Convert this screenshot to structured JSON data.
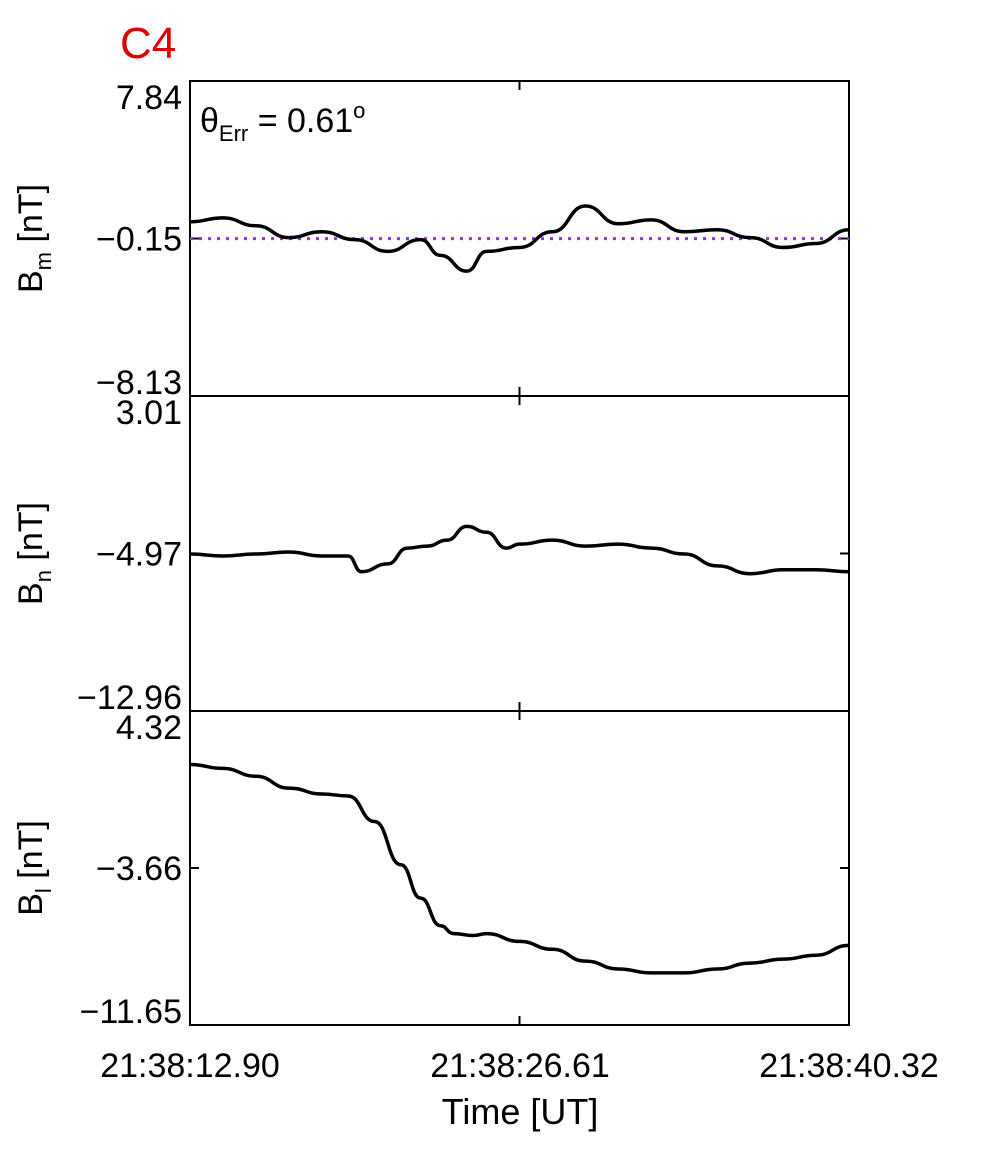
{
  "chart_data": [
    {
      "type": "line",
      "title": "C4",
      "title_color": "#e00000",
      "ylabel": "B",
      "ylabel_sub": "m",
      "ylabel_unit": " [nT]",
      "yticks": [
        "7.84",
        "-0.15",
        "-8.13"
      ],
      "ylim": [
        -8.13,
        7.84
      ],
      "annotation": {
        "theta": "θ",
        "sub": "Err",
        "eq": " =  0.61",
        "sup": "o"
      },
      "reference_line": {
        "value": -0.15,
        "color": "#9b30d9",
        "style": "dotted"
      },
      "line_color": "#000000",
      "x": [
        0,
        0.05,
        0.1,
        0.15,
        0.2,
        0.25,
        0.3,
        0.35,
        0.38,
        0.42,
        0.45,
        0.5,
        0.55,
        0.6,
        0.65,
        0.7,
        0.75,
        0.8,
        0.85,
        0.9,
        0.95,
        1.0
      ],
      "values": [
        0.7,
        0.9,
        0.5,
        -0.1,
        0.2,
        -0.2,
        -0.8,
        -0.2,
        -1.0,
        -1.8,
        -0.8,
        -0.6,
        0.2,
        1.5,
        0.6,
        0.8,
        0.2,
        0.3,
        -0.1,
        -0.6,
        -0.4,
        0.3
      ]
    },
    {
      "type": "line",
      "ylabel": "B",
      "ylabel_sub": "n",
      "ylabel_unit": " [nT]",
      "yticks": [
        "3.01",
        "-4.97",
        "-12.96"
      ],
      "ylim": [
        -12.96,
        3.01
      ],
      "line_color": "#000000",
      "x": [
        0,
        0.05,
        0.1,
        0.15,
        0.2,
        0.24,
        0.26,
        0.3,
        0.33,
        0.36,
        0.39,
        0.42,
        0.45,
        0.48,
        0.5,
        0.55,
        0.6,
        0.65,
        0.7,
        0.75,
        0.8,
        0.85,
        0.9,
        0.95,
        1.0
      ],
      "values": [
        -5.0,
        -5.1,
        -5.0,
        -4.9,
        -5.1,
        -5.1,
        -5.9,
        -5.5,
        -4.7,
        -4.6,
        -4.3,
        -3.6,
        -3.9,
        -4.7,
        -4.5,
        -4.3,
        -4.6,
        -4.5,
        -4.7,
        -5.0,
        -5.6,
        -6.0,
        -5.8,
        -5.8,
        -5.9
      ]
    },
    {
      "type": "line",
      "ylabel": "B",
      "ylabel_sub": "l",
      "ylabel_unit": " [nT]",
      "yticks": [
        "4.32",
        "-3.66",
        "-11.65"
      ],
      "ylim": [
        -11.65,
        4.32
      ],
      "line_color": "#000000",
      "x": [
        0,
        0.05,
        0.1,
        0.15,
        0.2,
        0.24,
        0.28,
        0.32,
        0.35,
        0.38,
        0.4,
        0.43,
        0.45,
        0.5,
        0.55,
        0.6,
        0.65,
        0.7,
        0.75,
        0.8,
        0.85,
        0.9,
        0.95,
        1.0
      ],
      "values": [
        1.6,
        1.4,
        1.0,
        0.4,
        0.1,
        0.0,
        -1.3,
        -3.5,
        -5.2,
        -6.6,
        -7.0,
        -7.1,
        -7.0,
        -7.4,
        -7.8,
        -8.4,
        -8.8,
        -9.0,
        -9.0,
        -8.8,
        -8.5,
        -8.3,
        -8.1,
        -7.6
      ]
    }
  ],
  "xaxis": {
    "ticks": [
      "21:38:12.90",
      "21:38:26.61",
      "21:38:40.32"
    ],
    "label": "Time [UT]"
  }
}
